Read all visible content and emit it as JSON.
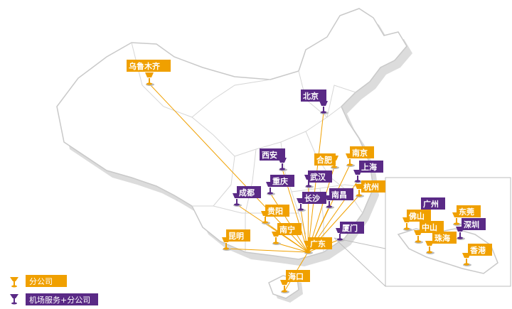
{
  "colors": {
    "branch": "#f0a000",
    "service": "#5a2a86",
    "route": "#f0a000",
    "land": "#ffffff",
    "border": "#c9c9c9",
    "shadow": "#dcdcdc"
  },
  "cities": [
    {
      "id": "urumqi",
      "name": "乌鲁木齐",
      "type": "branch"
    },
    {
      "id": "beijing",
      "name": "北京",
      "type": "service"
    },
    {
      "id": "xian",
      "name": "西安",
      "type": "service"
    },
    {
      "id": "hefei",
      "name": "合肥",
      "type": "branch"
    },
    {
      "id": "nanjing",
      "name": "南京",
      "type": "branch"
    },
    {
      "id": "shanghai",
      "name": "上海",
      "type": "service"
    },
    {
      "id": "chongqing",
      "name": "重庆",
      "type": "service"
    },
    {
      "id": "wuhan",
      "name": "武汉",
      "type": "service"
    },
    {
      "id": "chengdu",
      "name": "成都",
      "type": "service"
    },
    {
      "id": "changsha",
      "name": "长沙",
      "type": "service"
    },
    {
      "id": "nanchang",
      "name": "南昌",
      "type": "service"
    },
    {
      "id": "hangzhou",
      "name": "杭州",
      "type": "branch"
    },
    {
      "id": "guiyang",
      "name": "贵阳",
      "type": "branch"
    },
    {
      "id": "nanning",
      "name": "南宁",
      "type": "branch"
    },
    {
      "id": "xiamen",
      "name": "厦门",
      "type": "service"
    },
    {
      "id": "kunming",
      "name": "昆明",
      "type": "branch"
    },
    {
      "id": "guangdong",
      "name": "广东",
      "type": "branch"
    },
    {
      "id": "haikou",
      "name": "海口",
      "type": "branch"
    }
  ],
  "inset_cities": [
    {
      "id": "guangzhou",
      "name": "广州",
      "type": "service"
    },
    {
      "id": "dongguan",
      "name": "东莞",
      "type": "branch"
    },
    {
      "id": "foshan",
      "name": "佛山",
      "type": "branch"
    },
    {
      "id": "shenzhen",
      "name": "深圳",
      "type": "service"
    },
    {
      "id": "zhongshan",
      "name": "中山",
      "type": "branch"
    },
    {
      "id": "zhuhai",
      "name": "珠海",
      "type": "branch"
    },
    {
      "id": "hongkong",
      "name": "香港",
      "type": "branch"
    }
  ],
  "legend": {
    "branch_label": "分公司",
    "service_label": "机场服务+分公司"
  }
}
